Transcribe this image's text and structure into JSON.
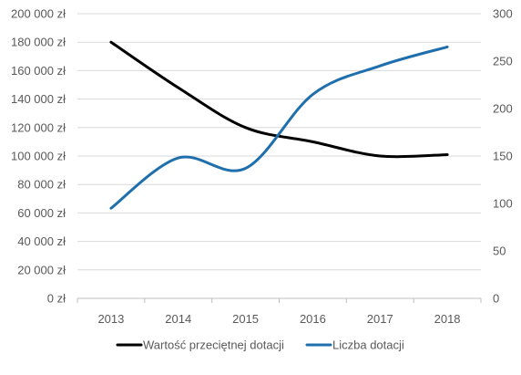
{
  "chart_data": {
    "type": "line",
    "title": "",
    "categories": [
      "2013",
      "2014",
      "2015",
      "2016",
      "2017",
      "2018"
    ],
    "series": [
      {
        "name": "Wartość przeciętnej dotacji",
        "axis": "left",
        "color": "#000000",
        "values": [
          180000,
          148000,
          120000,
          110000,
          100000,
          101000
        ]
      },
      {
        "name": "Liczba dotacji",
        "axis": "right",
        "color": "#1f6fad",
        "values": [
          95,
          148,
          137,
          215,
          245,
          265
        ]
      }
    ],
    "y_left": {
      "min": 0,
      "max": 200000,
      "ticks": [
        "0 zł",
        "20 000 zł",
        "40 000 zł",
        "60 000 zł",
        "80 000 zł",
        "100 000 zł",
        "120 000 zł",
        "140 000 zł",
        "160 000 zł",
        "180 000 zł",
        "200 000 zł"
      ]
    },
    "y_right": {
      "min": 0,
      "max": 300,
      "ticks": [
        "0",
        "50",
        "100",
        "150",
        "200",
        "250",
        "300"
      ]
    },
    "smooth": true,
    "grid": true,
    "legend_position": "bottom"
  }
}
